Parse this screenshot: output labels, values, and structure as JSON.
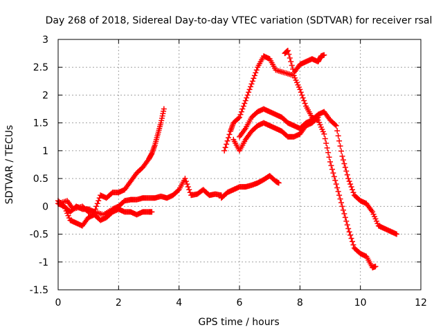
{
  "chart_data": {
    "type": "scatter",
    "title": "Day 268 of 2018, Sidereal Day-to-day VTEC variation (SDTVAR) for receiver rsal",
    "xlabel": "GPS time / hours",
    "ylabel": "SDTVAR / TECUs",
    "xlim": [
      0,
      12
    ],
    "ylim": [
      -1.5,
      3
    ],
    "xticks": [
      0,
      2,
      4,
      6,
      8,
      10,
      12
    ],
    "yticks": [
      -1.5,
      -1,
      -0.5,
      0,
      0.5,
      1,
      1.5,
      2,
      2.5,
      3
    ],
    "xtick_labels": [
      "0",
      "2",
      "4",
      "6",
      "8",
      "10",
      "12"
    ],
    "ytick_labels": [
      "-1.5",
      "-1",
      "-0.5",
      "0",
      "0.5",
      "1",
      "1.5",
      "2",
      "2.5",
      "3"
    ],
    "grid": true,
    "marker": "+",
    "color": "#ff0000",
    "series": [
      {
        "x": [
          0.0,
          0.2,
          0.4,
          0.6,
          0.8,
          1.0,
          1.2,
          1.4,
          1.6,
          1.8,
          2.0,
          2.2,
          2.4,
          2.6,
          2.8,
          3.0,
          3.1,
          3.2,
          3.3,
          3.4,
          3.5
        ],
        "y": [
          0.05,
          0.0,
          -0.1,
          0.0,
          -0.05,
          -0.05,
          -0.1,
          0.2,
          0.15,
          0.25,
          0.25,
          0.3,
          0.45,
          0.6,
          0.7,
          0.85,
          0.95,
          1.1,
          1.3,
          1.5,
          1.75
        ]
      },
      {
        "x": [
          0.0,
          0.2,
          0.4,
          0.6,
          0.8,
          1.0,
          1.2,
          1.4,
          1.6,
          1.8,
          2.0,
          2.2,
          2.4,
          2.6,
          2.8,
          3.0,
          3.1
        ],
        "y": [
          0.1,
          0.0,
          -0.25,
          -0.3,
          -0.35,
          -0.2,
          -0.15,
          -0.25,
          -0.2,
          -0.1,
          -0.05,
          -0.1,
          -0.1,
          -0.15,
          -0.1,
          -0.1,
          -0.1
        ]
      },
      {
        "x": [
          0.0,
          0.3,
          0.5,
          0.8,
          1.0,
          1.2,
          1.5,
          1.8,
          2.0,
          2.2,
          2.4,
          2.6,
          2.8,
          3.0,
          3.2,
          3.4,
          3.6,
          3.8,
          4.0,
          4.2,
          4.4,
          4.6,
          4.8,
          5.0,
          5.2,
          5.4
        ],
        "y": [
          0.05,
          0.1,
          -0.05,
          0.0,
          -0.1,
          -0.1,
          -0.15,
          -0.05,
          0.0,
          0.1,
          0.12,
          0.12,
          0.15,
          0.15,
          0.15,
          0.18,
          0.15,
          0.2,
          0.3,
          0.5,
          0.2,
          0.22,
          0.3,
          0.2,
          0.22,
          0.2
        ]
      },
      {
        "x": [
          5.4,
          5.6,
          5.8,
          6.0,
          6.2,
          6.4,
          6.6,
          6.8,
          7.0,
          7.2,
          7.3
        ],
        "y": [
          0.15,
          0.25,
          0.3,
          0.35,
          0.35,
          0.38,
          0.42,
          0.48,
          0.55,
          0.45,
          0.42
        ]
      },
      {
        "x": [
          5.5,
          5.7,
          5.8,
          6.0,
          6.2,
          6.4,
          6.6,
          6.8,
          7.0,
          7.2,
          7.5,
          7.8,
          8.0,
          8.2,
          8.4,
          8.6,
          8.8,
          9.0,
          9.2,
          9.4,
          9.6,
          9.8,
          10.0,
          10.2,
          10.4,
          10.5
        ],
        "y": [
          1.0,
          1.35,
          1.5,
          1.6,
          1.9,
          2.2,
          2.5,
          2.7,
          2.65,
          2.45,
          2.4,
          2.35,
          2.1,
          1.8,
          1.6,
          1.55,
          1.3,
          0.8,
          0.4,
          0.0,
          -0.4,
          -0.75,
          -0.85,
          -0.9,
          -1.1,
          -1.08
        ]
      },
      {
        "x": [
          7.5,
          7.6,
          7.8,
          8.0,
          8.2,
          8.4,
          8.6,
          8.7,
          8.8
        ],
        "y": [
          2.75,
          2.8,
          2.4,
          2.55,
          2.6,
          2.65,
          2.6,
          2.7,
          2.72
        ]
      },
      {
        "x": [
          6.0,
          6.2,
          6.4,
          6.6,
          6.8,
          7.0,
          7.2,
          7.4,
          7.6,
          7.8,
          8.0,
          8.2,
          8.4,
          8.6,
          8.8,
          9.0,
          9.2,
          9.4,
          9.6,
          9.8,
          10.0,
          10.2,
          10.4,
          10.6,
          10.8,
          11.0,
          11.2
        ],
        "y": [
          1.25,
          1.4,
          1.6,
          1.7,
          1.75,
          1.7,
          1.65,
          1.6,
          1.5,
          1.45,
          1.4,
          1.5,
          1.55,
          1.65,
          1.7,
          1.55,
          1.45,
          0.9,
          0.5,
          0.2,
          0.1,
          0.05,
          -0.1,
          -0.35,
          -0.4,
          -0.45,
          -0.5
        ]
      },
      {
        "x": [
          5.8,
          6.0,
          6.2,
          6.4,
          6.6,
          6.8,
          7.0,
          7.2,
          7.4,
          7.6,
          7.8,
          8.0,
          8.2,
          8.4,
          8.6
        ],
        "y": [
          1.2,
          1.0,
          1.2,
          1.35,
          1.45,
          1.5,
          1.45,
          1.4,
          1.35,
          1.25,
          1.25,
          1.3,
          1.45,
          1.5,
          1.6
        ]
      }
    ]
  }
}
